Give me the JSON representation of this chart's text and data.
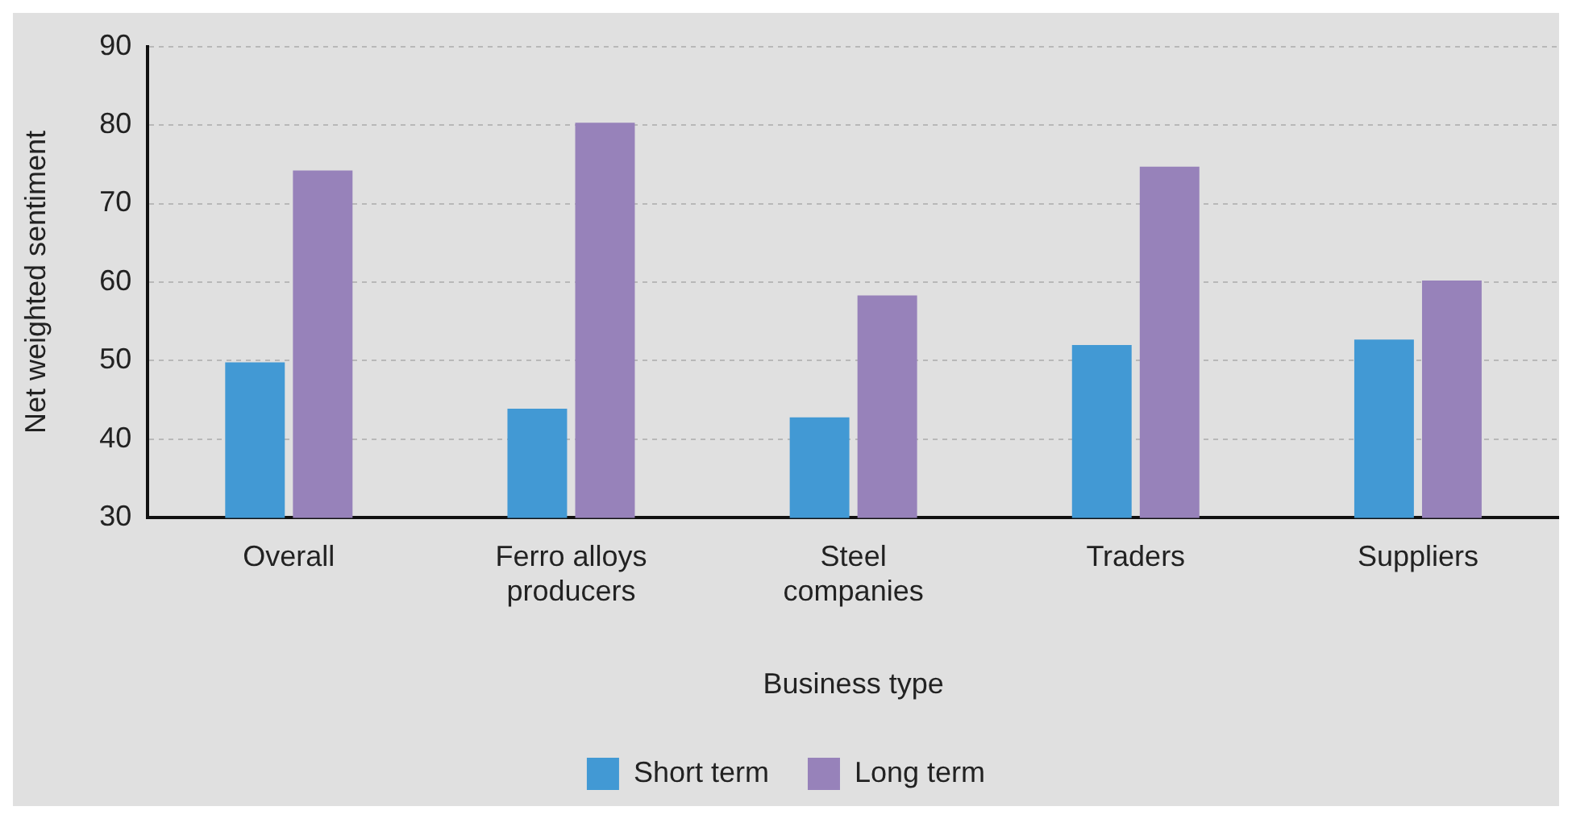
{
  "chart_data": {
    "type": "bar",
    "xlabel": "Business type",
    "ylabel": "Net weighted sentiment",
    "categories": [
      "Overall",
      "Ferro alloys producers",
      "Steel companies",
      "Traders",
      "Suppliers"
    ],
    "series": [
      {
        "name": "Short term",
        "color": "#4299d4",
        "values": [
          49.8,
          43.9,
          42.8,
          52.0,
          52.7
        ]
      },
      {
        "name": "Long term",
        "color": "#9782ba",
        "values": [
          74.2,
          80.3,
          58.3,
          74.7,
          60.2
        ]
      }
    ],
    "ylim": [
      30,
      90
    ],
    "yticks": [
      30,
      40,
      50,
      60,
      70,
      80,
      90
    ],
    "grid": "y",
    "legend": "bottom"
  }
}
